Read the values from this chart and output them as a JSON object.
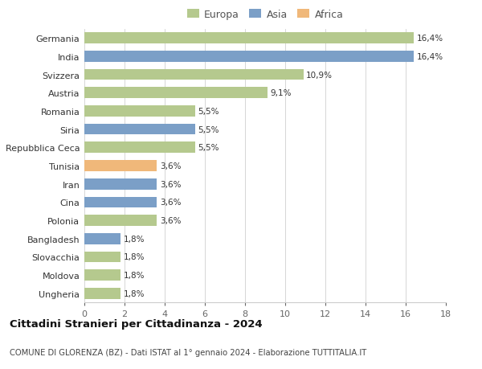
{
  "categories": [
    "Germania",
    "India",
    "Svizzera",
    "Austria",
    "Romania",
    "Siria",
    "Repubblica Ceca",
    "Tunisia",
    "Iran",
    "Cina",
    "Polonia",
    "Bangladesh",
    "Slovacchia",
    "Moldova",
    "Ungheria"
  ],
  "values": [
    16.4,
    16.4,
    10.9,
    9.1,
    5.5,
    5.5,
    5.5,
    3.6,
    3.6,
    3.6,
    3.6,
    1.8,
    1.8,
    1.8,
    1.8
  ],
  "labels": [
    "16,4%",
    "16,4%",
    "10,9%",
    "9,1%",
    "5,5%",
    "5,5%",
    "5,5%",
    "3,6%",
    "3,6%",
    "3,6%",
    "3,6%",
    "1,8%",
    "1,8%",
    "1,8%",
    "1,8%"
  ],
  "continent": [
    "Europa",
    "Asia",
    "Europa",
    "Europa",
    "Europa",
    "Asia",
    "Europa",
    "Africa",
    "Asia",
    "Asia",
    "Europa",
    "Asia",
    "Europa",
    "Europa",
    "Europa"
  ],
  "colors": {
    "Europa": "#b5c98e",
    "Asia": "#7b9fc7",
    "Africa": "#f0b87a"
  },
  "legend_order": [
    "Europa",
    "Asia",
    "Africa"
  ],
  "xlim": [
    0,
    18
  ],
  "xticks": [
    0,
    2,
    4,
    6,
    8,
    10,
    12,
    14,
    16,
    18
  ],
  "title": "Cittadini Stranieri per Cittadinanza - 2024",
  "subtitle": "COMUNE DI GLORENZA (BZ) - Dati ISTAT al 1° gennaio 2024 - Elaborazione TUTTITALIA.IT",
  "background_color": "#ffffff",
  "bar_height": 0.6
}
